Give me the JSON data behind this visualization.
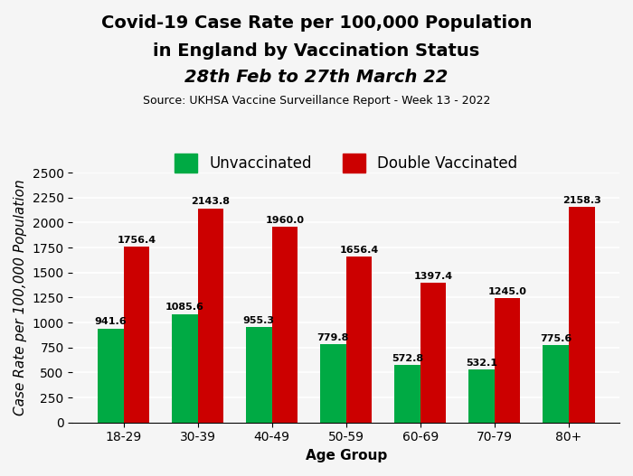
{
  "title_line1": "Covid-19 Case Rate per 100,000 Population",
  "title_line2": "in England by Vaccination Status",
  "title_line3": "28th Feb to 27th March 22",
  "subtitle": "Source: UKHSA Vaccine Surveillance Report - Week 13 - 2022",
  "xlabel": "Age Group",
  "ylabel": "Case Rate per 100,000 Population",
  "categories": [
    "18-29",
    "30-39",
    "40-49",
    "50-59",
    "60-69",
    "70-79",
    "80+"
  ],
  "unvaccinated": [
    941.6,
    1085.6,
    955.3,
    779.8,
    572.8,
    532.1,
    775.6
  ],
  "double_vaccinated": [
    1756.4,
    2143.8,
    1960.0,
    1656.4,
    1397.4,
    1245.0,
    2158.3
  ],
  "unvaccinated_color": "#00aa44",
  "double_vaccinated_color": "#cc0000",
  "background_color": "#f5f5f5",
  "ylim": [
    0,
    2500
  ],
  "yticks": [
    0,
    250,
    500,
    750,
    1000,
    1250,
    1500,
    1750,
    2000,
    2250,
    2500
  ],
  "bar_width": 0.35,
  "title_fontsize": 14,
  "title_line3_style": "italic",
  "subtitle_fontsize": 9,
  "legend_fontsize": 12,
  "axis_label_fontsize": 11,
  "tick_fontsize": 10,
  "value_label_fontsize": 8
}
